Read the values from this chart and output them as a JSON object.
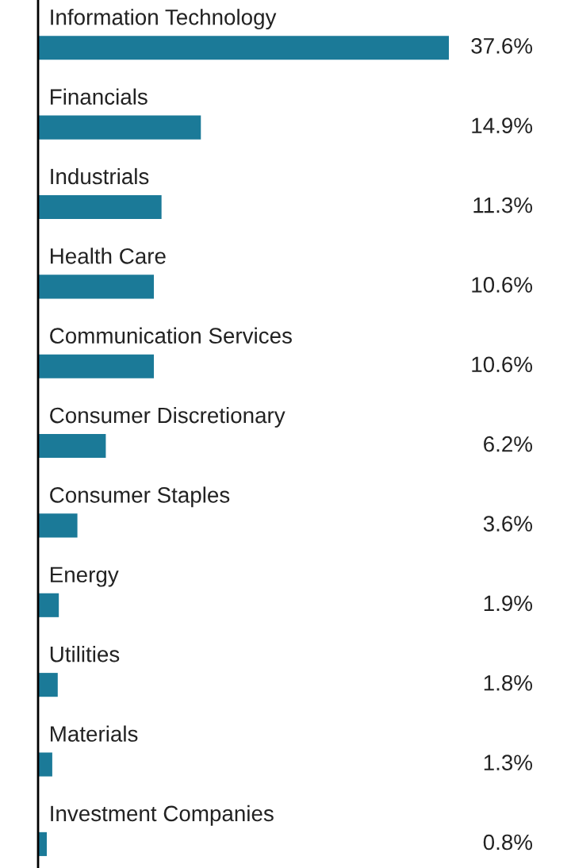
{
  "chart_data": {
    "type": "bar",
    "orientation": "horizontal",
    "categories": [
      "Information Technology",
      "Financials",
      "Industrials",
      "Health Care",
      "Communication Services",
      "Consumer Discretionary",
      "Consumer Staples",
      "Energy",
      "Utilities",
      "Materials",
      "Investment Companies"
    ],
    "values": [
      37.6,
      14.9,
      11.3,
      10.6,
      10.6,
      6.2,
      3.6,
      1.9,
      1.8,
      1.3,
      0.8
    ],
    "value_labels": [
      "37.6%",
      "14.9%",
      "11.3%",
      "10.6%",
      "10.6%",
      "6.2%",
      "3.6%",
      "1.9%",
      "1.8%",
      "1.3%",
      "0.8%"
    ],
    "color": "#1b7a98"
  }
}
